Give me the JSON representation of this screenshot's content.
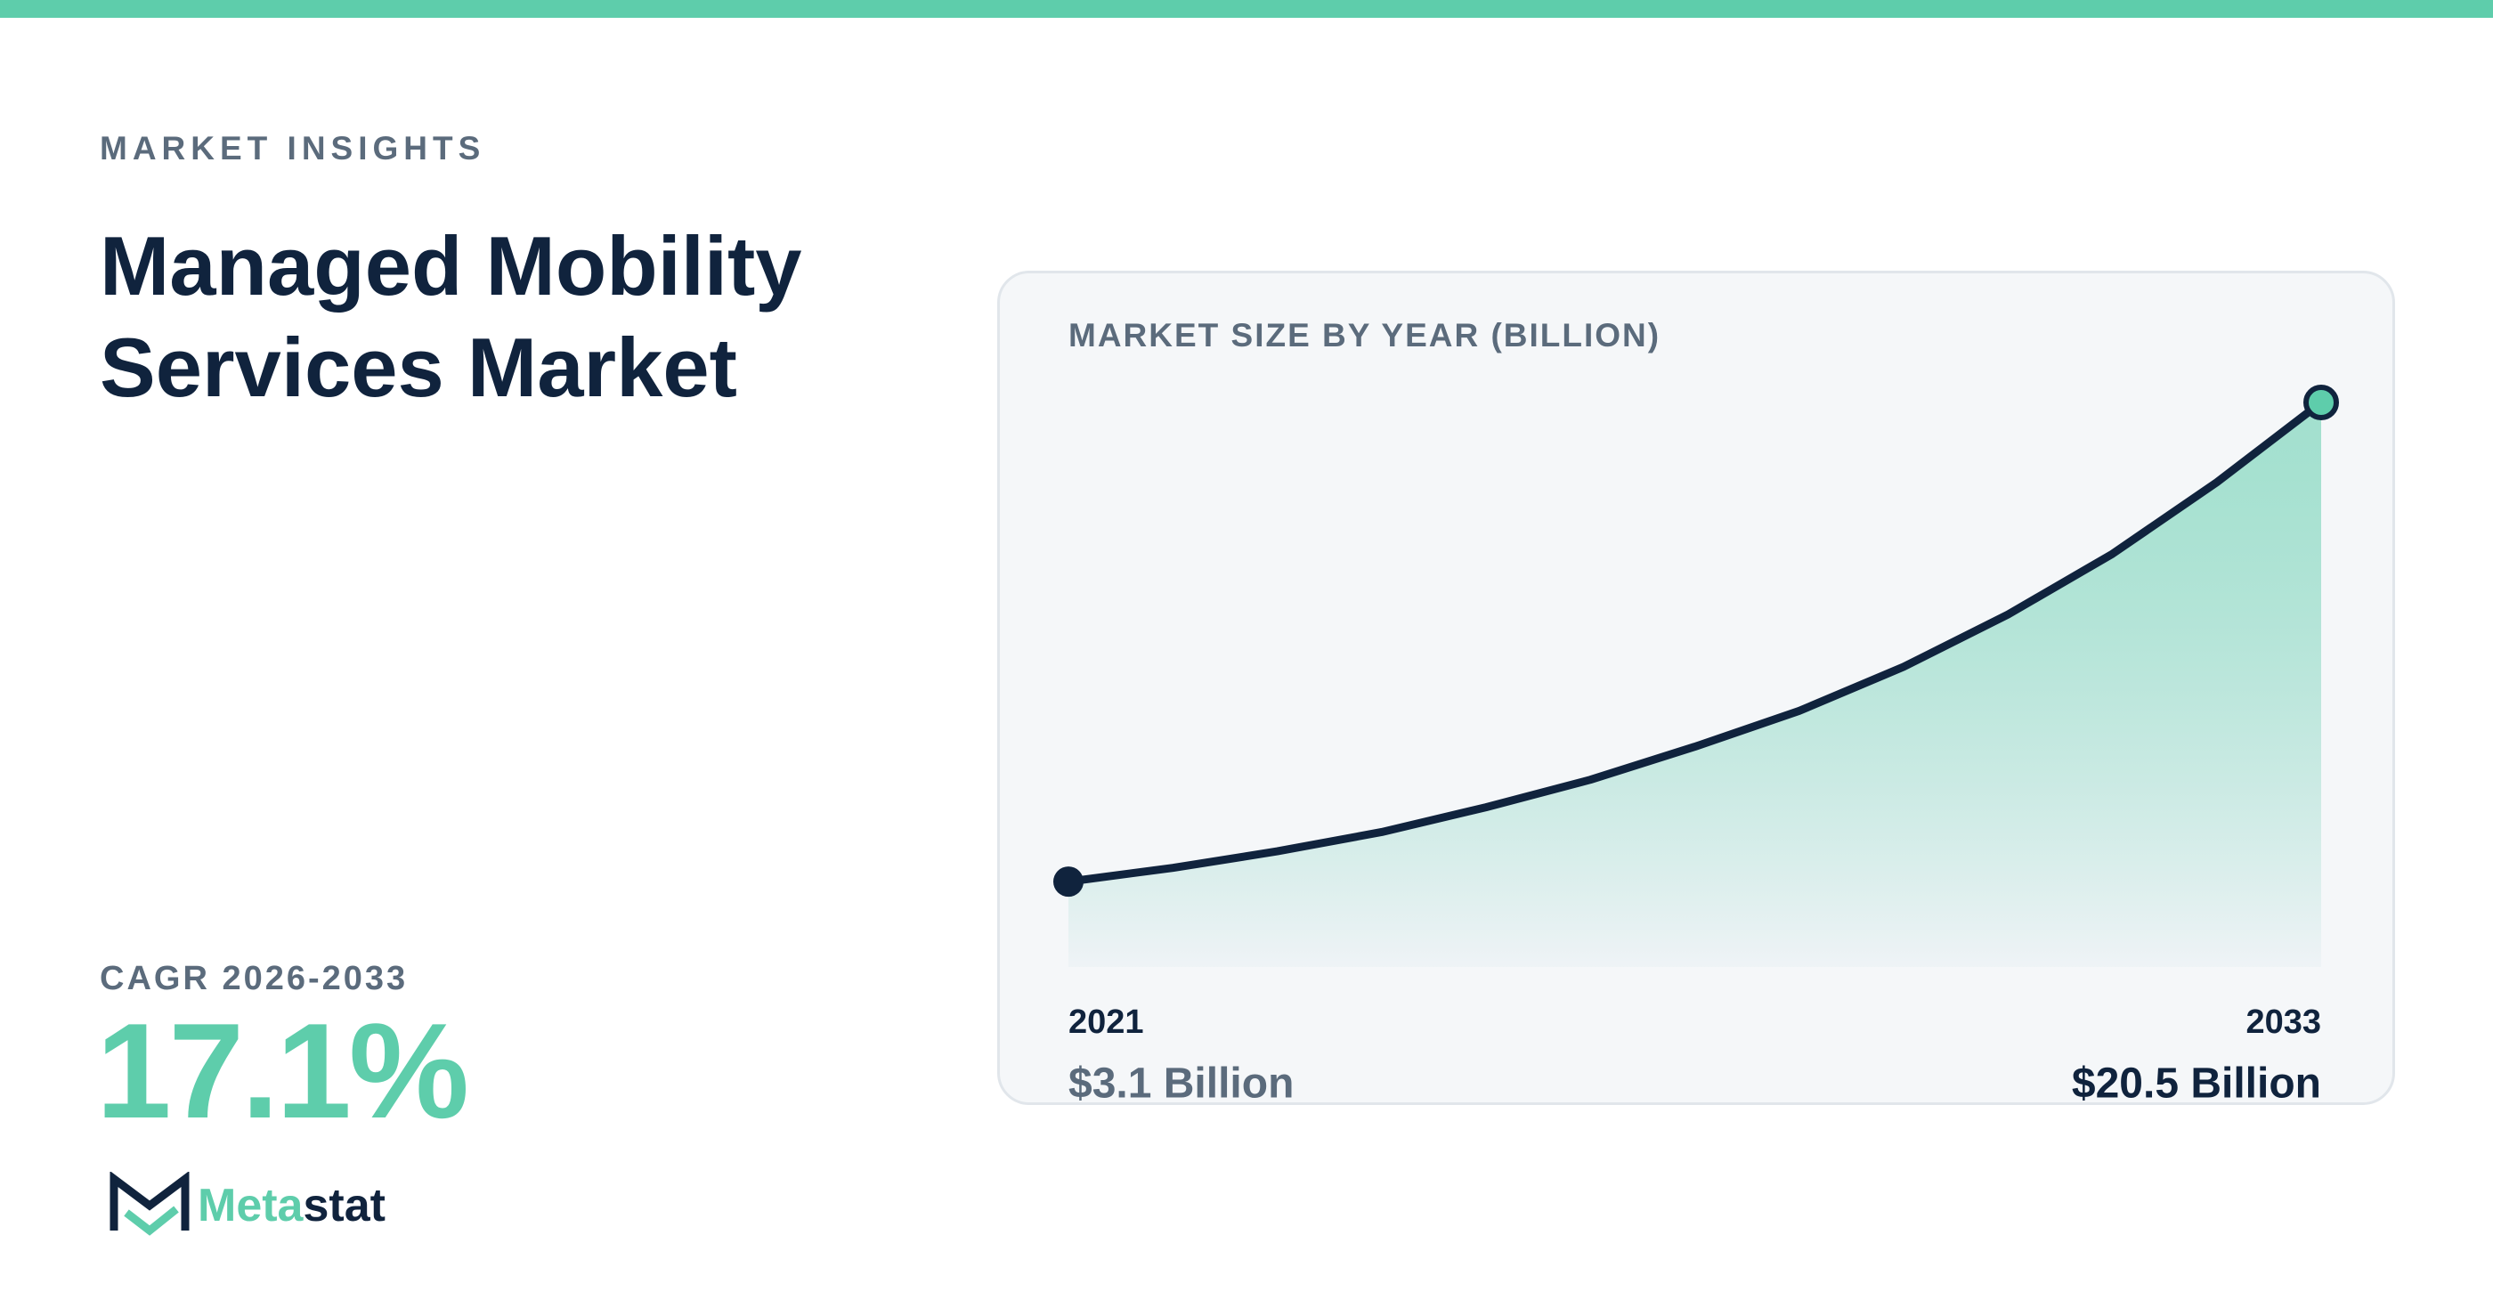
{
  "header": {
    "eyebrow": "MARKET INSIGHTS",
    "title": "Managed Mobility Services Market"
  },
  "cagr": {
    "label": "CAGR 2026-2033",
    "value": "17.1%"
  },
  "logo": {
    "part1": "Meta",
    "part2": "stat"
  },
  "chart_data": {
    "type": "line",
    "title": "MARKET SIZE BY YEAR (BILLION)",
    "categories": [
      "2021",
      null,
      null,
      null,
      null,
      null,
      null,
      null,
      null,
      null,
      null,
      null,
      "2033"
    ],
    "values": [
      3.1,
      3.6,
      4.2,
      4.9,
      5.8,
      6.8,
      8.0,
      9.3,
      10.9,
      12.8,
      15.0,
      17.6,
      20.5
    ],
    "value_labels": [
      "$3.1 Billion",
      null,
      null,
      null,
      null,
      null,
      null,
      null,
      null,
      null,
      null,
      null,
      "$20.5 Billion"
    ],
    "color": "#10233d",
    "fill_color": "#5ecdab",
    "ylim": [
      0,
      20.5
    ]
  }
}
